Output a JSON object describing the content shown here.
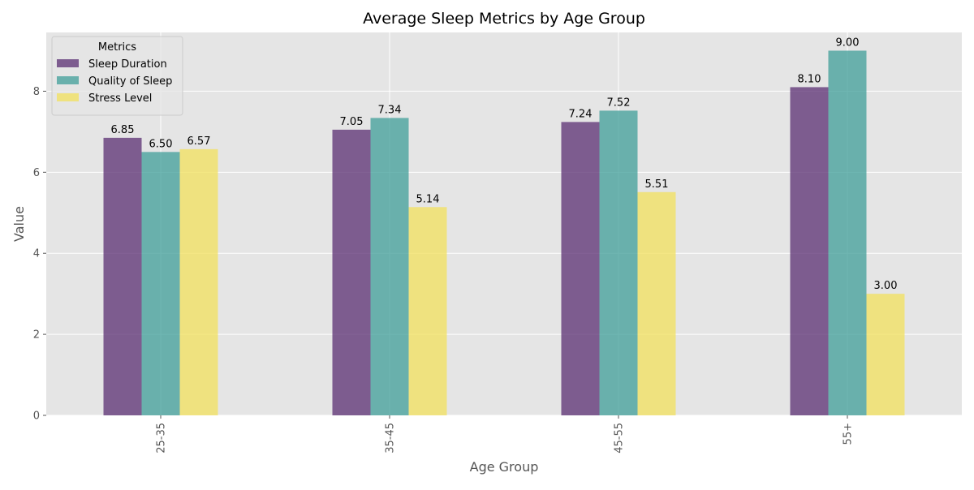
{
  "chart_data": {
    "type": "bar",
    "title": "Average Sleep Metrics by Age Group",
    "xlabel": "Age Group",
    "ylabel": "Value",
    "categories": [
      "25-35",
      "35-45",
      "45-55",
      "55+"
    ],
    "series": [
      {
        "name": "Sleep Duration",
        "values": [
          6.85,
          7.05,
          7.24,
          8.1
        ],
        "color": "#5a2d72"
      },
      {
        "name": "Quality of Sleep",
        "values": [
          6.5,
          7.34,
          7.52,
          9.0
        ],
        "color": "#3f9e98"
      },
      {
        "name": "Stress Level",
        "values": [
          6.57,
          5.14,
          5.51,
          3.0
        ],
        "color": "#f2e05c"
      }
    ],
    "value_labels": [
      [
        "6.85",
        "7.05",
        "7.24",
        "8.10"
      ],
      [
        "6.50",
        "7.34",
        "7.52",
        "9.00"
      ],
      [
        "6.57",
        "5.14",
        "5.51",
        "3.00"
      ]
    ],
    "ylim": [
      0,
      9.45
    ],
    "yticks": [
      0,
      2,
      4,
      6,
      8
    ],
    "ytick_labels": [
      "0",
      "2",
      "4",
      "6",
      "8"
    ],
    "grid": true,
    "legend": {
      "title": "Metrics",
      "placement": "top-left"
    },
    "bar_alpha": 0.75,
    "background": "#e5e5e5"
  }
}
